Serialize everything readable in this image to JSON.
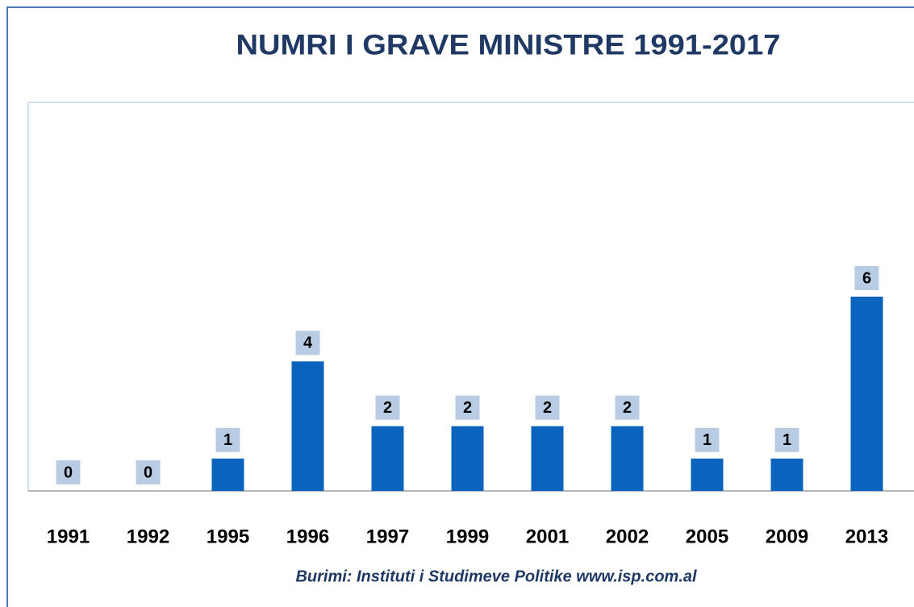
{
  "chart_data": {
    "type": "bar",
    "title": "NUMRI I GRAVE MINISTRE 1991-2017",
    "source": "Burimi: Instituti i Studimeve Politike www.isp.com.al",
    "categories": [
      "1991",
      "1992",
      "1995",
      "1996",
      "1997",
      "1999",
      "2001",
      "2002",
      "2005",
      "2009",
      "2013"
    ],
    "values": [
      0,
      0,
      1,
      4,
      2,
      2,
      2,
      2,
      1,
      1,
      6
    ],
    "color": "#0a64be",
    "ylim": [
      0,
      12
    ]
  }
}
